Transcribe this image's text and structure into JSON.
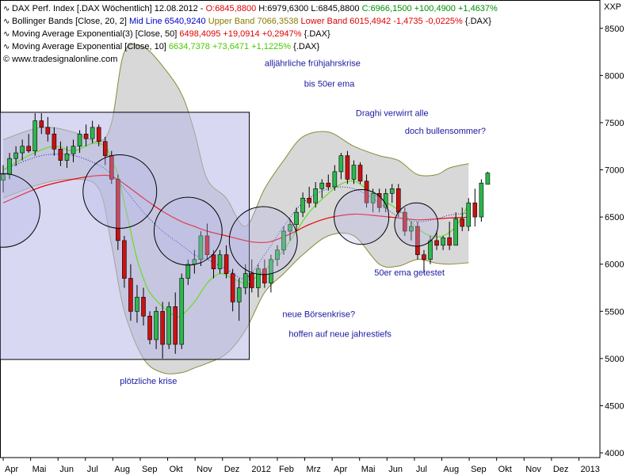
{
  "legend": {
    "line1": {
      "name": "DAX Perf. Index [.DAX  Wöchentlich] 12.08.2012 - ",
      "open": "O:6845,8800",
      "high": "H:6979,6300",
      "low": "L:6845,8800",
      "close": "C:6966,1500 +100,4900 +1,4637%"
    },
    "line2": {
      "name": "Bollinger Bands [Close, 20, 2] ",
      "mid": "Mid Line 6540,9240",
      "upper": "Upper Band 7066,3538",
      "lower": "Lower Band 6015,4942 -1,4735 -0,0225%",
      "tail": "{.DAX}"
    },
    "line3": {
      "name": "Moving Average Exponential(3) [Close, 50] ",
      "value": "6498,4095 +19,0914 +0,2947%",
      "tail": "{.DAX}"
    },
    "line4": {
      "name": "Moving Average Exponential [Close, 10] ",
      "value": "6634,7378 +73,6471 +1,1225%",
      "tail": "{.DAX}"
    },
    "line5": "© www.tradesignalonline.com",
    "icon": "wave-icon"
  },
  "exchange_label": "XXP",
  "colors": {
    "up_candle": "#2db84d",
    "down_candle": "#cc1111",
    "bollinger_fill": "#d8d8d8",
    "bollinger_line": "#8a8a3a",
    "ema50": "#ee0000",
    "ema10": "#66dd22",
    "midline": "#1a1acc",
    "highlight": "#b8b8e8",
    "annotation": "#1a1aa0"
  },
  "chart_data": {
    "type": "candlestick",
    "title": "DAX Perf. Index [.DAX  Wöchentlich]",
    "y_ticks": [
      4000,
      4500,
      5000,
      5500,
      6000,
      6500,
      7000,
      7500,
      8000,
      8500
    ],
    "y_tick_labels": [
      "4000",
      "4500",
      "5000",
      "5500",
      "6000",
      "6500",
      "7000",
      "7500",
      "8000",
      "8500"
    ],
    "ylim": [
      3950,
      8800
    ],
    "x_ticks": [
      "Apr",
      "Mai",
      "Jun",
      "Jul",
      "Aug",
      "Sep",
      "Okt",
      "Nov",
      "Dez",
      "2012",
      "Feb",
      "Mrz",
      "Apr",
      "Mai",
      "Jun",
      "Jul",
      "Aug",
      "Sep",
      "Okt",
      "Nov",
      "Dez",
      "2013"
    ],
    "x_tick_weeks": [
      0,
      4.3,
      8.6,
      12.9,
      17.2,
      21.5,
      25.8,
      30.1,
      34.4,
      38.7,
      43,
      47.3,
      51.6,
      55.9,
      60.2,
      64.5,
      68.8,
      73.1,
      77.4,
      81.7,
      86,
      90.3
    ],
    "xlim_weeks": [
      -0.5,
      93.6
    ],
    "candles": [
      {
        "o": 6890,
        "h": 7050,
        "l": 6760,
        "c": 6950
      },
      {
        "o": 6950,
        "h": 7180,
        "l": 6900,
        "c": 7120
      },
      {
        "o": 7120,
        "h": 7250,
        "l": 7040,
        "c": 7180
      },
      {
        "o": 7180,
        "h": 7320,
        "l": 7100,
        "c": 7250
      },
      {
        "o": 7250,
        "h": 7380,
        "l": 7180,
        "c": 7200
      },
      {
        "o": 7200,
        "h": 7600,
        "l": 7150,
        "c": 7520
      },
      {
        "o": 7520,
        "h": 7600,
        "l": 7380,
        "c": 7450
      },
      {
        "o": 7450,
        "h": 7560,
        "l": 7300,
        "c": 7380
      },
      {
        "o": 7380,
        "h": 7450,
        "l": 7150,
        "c": 7220
      },
      {
        "o": 7220,
        "h": 7300,
        "l": 7040,
        "c": 7100
      },
      {
        "o": 7100,
        "h": 7250,
        "l": 7020,
        "c": 7170
      },
      {
        "o": 7170,
        "h": 7320,
        "l": 7080,
        "c": 7250
      },
      {
        "o": 7250,
        "h": 7420,
        "l": 7180,
        "c": 7380
      },
      {
        "o": 7380,
        "h": 7480,
        "l": 7250,
        "c": 7330
      },
      {
        "o": 7330,
        "h": 7520,
        "l": 7280,
        "c": 7450
      },
      {
        "o": 7450,
        "h": 7480,
        "l": 7250,
        "c": 7300
      },
      {
        "o": 7300,
        "h": 7350,
        "l": 7050,
        "c": 7150
      },
      {
        "o": 7150,
        "h": 7200,
        "l": 6850,
        "c": 6900
      },
      {
        "o": 6900,
        "h": 6950,
        "l": 6150,
        "c": 6250
      },
      {
        "o": 6250,
        "h": 6300,
        "l": 5750,
        "c": 5850
      },
      {
        "o": 5850,
        "h": 6000,
        "l": 5400,
        "c": 5500
      },
      {
        "o": 5500,
        "h": 5780,
        "l": 5380,
        "c": 5650
      },
      {
        "o": 5650,
        "h": 5750,
        "l": 5350,
        "c": 5450
      },
      {
        "o": 5450,
        "h": 5500,
        "l": 5150,
        "c": 5200
      },
      {
        "o": 5200,
        "h": 5550,
        "l": 5100,
        "c": 5500
      },
      {
        "o": 5500,
        "h": 5600,
        "l": 5000,
        "c": 5150
      },
      {
        "o": 5150,
        "h": 5600,
        "l": 5100,
        "c": 5550
      },
      {
        "o": 5550,
        "h": 5700,
        "l": 5050,
        "c": 5150
      },
      {
        "o": 5150,
        "h": 5900,
        "l": 5100,
        "c": 5850
      },
      {
        "o": 5850,
        "h": 6050,
        "l": 5780,
        "c": 6000
      },
      {
        "o": 6000,
        "h": 6150,
        "l": 5900,
        "c": 6050
      },
      {
        "o": 6050,
        "h": 6350,
        "l": 5980,
        "c": 6300
      },
      {
        "o": 6300,
        "h": 6430,
        "l": 6050,
        "c": 6100
      },
      {
        "o": 6100,
        "h": 6150,
        "l": 5850,
        "c": 5950
      },
      {
        "o": 5950,
        "h": 6150,
        "l": 5900,
        "c": 6100
      },
      {
        "o": 6100,
        "h": 6200,
        "l": 5850,
        "c": 5900
      },
      {
        "o": 5900,
        "h": 5950,
        "l": 5500,
        "c": 5600
      },
      {
        "o": 5600,
        "h": 5850,
        "l": 5400,
        "c": 5750
      },
      {
        "o": 5750,
        "h": 6000,
        "l": 5680,
        "c": 5900
      },
      {
        "o": 5900,
        "h": 6050,
        "l": 5700,
        "c": 5750
      },
      {
        "o": 5750,
        "h": 6000,
        "l": 5650,
        "c": 5950
      },
      {
        "o": 5950,
        "h": 6050,
        "l": 5750,
        "c": 5800
      },
      {
        "o": 5800,
        "h": 6100,
        "l": 5700,
        "c": 6050
      },
      {
        "o": 6050,
        "h": 6200,
        "l": 5980,
        "c": 6150
      },
      {
        "o": 6150,
        "h": 6400,
        "l": 6100,
        "c": 6350
      },
      {
        "o": 6350,
        "h": 6480,
        "l": 6250,
        "c": 6420
      },
      {
        "o": 6420,
        "h": 6600,
        "l": 6350,
        "c": 6550
      },
      {
        "o": 6550,
        "h": 6760,
        "l": 6500,
        "c": 6700
      },
      {
        "o": 6700,
        "h": 6820,
        "l": 6600,
        "c": 6650
      },
      {
        "o": 6650,
        "h": 6870,
        "l": 6600,
        "c": 6800
      },
      {
        "o": 6800,
        "h": 6900,
        "l": 6700,
        "c": 6860
      },
      {
        "o": 6860,
        "h": 6950,
        "l": 6780,
        "c": 6820
      },
      {
        "o": 6820,
        "h": 7050,
        "l": 6780,
        "c": 6980
      },
      {
        "o": 6980,
        "h": 7180,
        "l": 6900,
        "c": 7150
      },
      {
        "o": 7150,
        "h": 7200,
        "l": 6850,
        "c": 6900
      },
      {
        "o": 6900,
        "h": 7100,
        "l": 6850,
        "c": 7050
      },
      {
        "o": 7050,
        "h": 7080,
        "l": 6850,
        "c": 6880
      },
      {
        "o": 6880,
        "h": 6950,
        "l": 6600,
        "c": 6650
      },
      {
        "o": 6650,
        "h": 6800,
        "l": 6550,
        "c": 6750
      },
      {
        "o": 6750,
        "h": 6800,
        "l": 6550,
        "c": 6600
      },
      {
        "o": 6600,
        "h": 6800,
        "l": 6550,
        "c": 6750
      },
      {
        "o": 6750,
        "h": 6850,
        "l": 6650,
        "c": 6800
      },
      {
        "o": 6800,
        "h": 6850,
        "l": 6500,
        "c": 6550
      },
      {
        "o": 6550,
        "h": 6600,
        "l": 6300,
        "c": 6350
      },
      {
        "o": 6350,
        "h": 6450,
        "l": 6250,
        "c": 6400
      },
      {
        "o": 6400,
        "h": 6450,
        "l": 6050,
        "c": 6100
      },
      {
        "o": 6100,
        "h": 6150,
        "l": 5900,
        "c": 6050
      },
      {
        "o": 6050,
        "h": 6300,
        "l": 6000,
        "c": 6250
      },
      {
        "o": 6250,
        "h": 6350,
        "l": 6150,
        "c": 6200
      },
      {
        "o": 6200,
        "h": 6300,
        "l": 6150,
        "c": 6280
      },
      {
        "o": 6280,
        "h": 6450,
        "l": 6150,
        "c": 6200
      },
      {
        "o": 6200,
        "h": 6550,
        "l": 6200,
        "c": 6480
      },
      {
        "o": 6480,
        "h": 6600,
        "l": 6350,
        "c": 6400
      },
      {
        "o": 6400,
        "h": 6700,
        "l": 6350,
        "c": 6650
      },
      {
        "o": 6650,
        "h": 6800,
        "l": 6400,
        "c": 6500
      },
      {
        "o": 6500,
        "h": 6900,
        "l": 6450,
        "c": 6860
      },
      {
        "o": 6845.88,
        "h": 6979.63,
        "l": 6845.88,
        "c": 6966.15
      }
    ],
    "bollinger_upper": [
      [
        0,
        7320
      ],
      [
        6,
        7450
      ],
      [
        11,
        7400
      ],
      [
        15,
        7300
      ],
      [
        17,
        7500
      ],
      [
        19,
        8250
      ],
      [
        22,
        8300
      ],
      [
        25,
        8100
      ],
      [
        28,
        7800
      ],
      [
        30,
        7400
      ],
      [
        32,
        6900
      ],
      [
        35,
        6700
      ],
      [
        38,
        6400
      ],
      [
        41,
        6800
      ],
      [
        44,
        7100
      ],
      [
        47,
        7350
      ],
      [
        51,
        7400
      ],
      [
        55,
        7250
      ],
      [
        59,
        7150
      ],
      [
        62,
        7100
      ],
      [
        65,
        6950
      ],
      [
        68,
        6950
      ],
      [
        70,
        7020
      ],
      [
        73,
        7066
      ]
    ],
    "bollinger_lower": [
      [
        0,
        6700
      ],
      [
        6,
        6850
      ],
      [
        11,
        6900
      ],
      [
        15,
        6800
      ],
      [
        17,
        6200
      ],
      [
        19,
        5500
      ],
      [
        22,
        5000
      ],
      [
        25,
        4850
      ],
      [
        28,
        4850
      ],
      [
        30,
        4900
      ],
      [
        32,
        4950
      ],
      [
        35,
        5050
      ],
      [
        38,
        5300
      ],
      [
        41,
        5700
      ],
      [
        44,
        5900
      ],
      [
        47,
        6100
      ],
      [
        51,
        6300
      ],
      [
        55,
        6300
      ],
      [
        59,
        6000
      ],
      [
        62,
        5980
      ],
      [
        65,
        6050
      ],
      [
        68,
        6010
      ],
      [
        70,
        6000
      ],
      [
        73,
        6015
      ]
    ],
    "bollinger_mid": [
      [
        0,
        7000
      ],
      [
        6,
        7150
      ],
      [
        11,
        7150
      ],
      [
        15,
        7050
      ],
      [
        17,
        6950
      ],
      [
        19,
        6800
      ],
      [
        22,
        6550
      ],
      [
        25,
        6350
      ],
      [
        28,
        6200
      ],
      [
        30,
        6100
      ],
      [
        32,
        6050
      ],
      [
        35,
        5950
      ],
      [
        38,
        5850
      ],
      [
        41,
        6100
      ],
      [
        44,
        6400
      ],
      [
        47,
        6650
      ],
      [
        51,
        6800
      ],
      [
        55,
        6800
      ],
      [
        59,
        6650
      ],
      [
        62,
        6500
      ],
      [
        65,
        6450
      ],
      [
        68,
        6480
      ],
      [
        70,
        6520
      ],
      [
        73,
        6541
      ]
    ],
    "ema50": [
      [
        0,
        6650
      ],
      [
        6,
        6820
      ],
      [
        11,
        6900
      ],
      [
        15,
        6940
      ],
      [
        17,
        6930
      ],
      [
        19,
        6850
      ],
      [
        22,
        6700
      ],
      [
        25,
        6560
      ],
      [
        28,
        6450
      ],
      [
        30,
        6400
      ],
      [
        32,
        6350
      ],
      [
        35,
        6300
      ],
      [
        38,
        6250
      ],
      [
        40,
        6230
      ],
      [
        42,
        6240
      ],
      [
        45,
        6320
      ],
      [
        48,
        6420
      ],
      [
        51,
        6490
      ],
      [
        55,
        6530
      ],
      [
        59,
        6510
      ],
      [
        62,
        6490
      ],
      [
        65,
        6470
      ],
      [
        68,
        6480
      ],
      [
        70,
        6490
      ],
      [
        73,
        6498
      ]
    ],
    "ema10": [
      [
        0,
        7000
      ],
      [
        4,
        7150
      ],
      [
        8,
        7250
      ],
      [
        11,
        7200
      ],
      [
        14,
        7280
      ],
      [
        16,
        7250
      ],
      [
        17,
        7100
      ],
      [
        18,
        6950
      ],
      [
        19,
        6650
      ],
      [
        20,
        6350
      ],
      [
        21,
        6050
      ],
      [
        22,
        5850
      ],
      [
        23,
        5700
      ],
      [
        25,
        5550
      ],
      [
        27,
        5450
      ],
      [
        28,
        5460
      ],
      [
        30,
        5600
      ],
      [
        32,
        5800
      ],
      [
        34,
        5900
      ],
      [
        36,
        5850
      ],
      [
        38,
        5800
      ],
      [
        40,
        5880
      ],
      [
        42,
        6000
      ],
      [
        44,
        6150
      ],
      [
        46,
        6350
      ],
      [
        48,
        6550
      ],
      [
        51,
        6750
      ],
      [
        53,
        6850
      ],
      [
        55,
        6880
      ],
      [
        57,
        6800
      ],
      [
        59,
        6700
      ],
      [
        61,
        6620
      ],
      [
        63,
        6520
      ],
      [
        65,
        6380
      ],
      [
        67,
        6300
      ],
      [
        69,
        6300
      ],
      [
        71,
        6400
      ],
      [
        73,
        6635
      ]
    ],
    "highlight_rect": {
      "w0": -0.5,
      "w1": 38.6,
      "v0": 4990,
      "v1": 7610
    },
    "circles": [
      {
        "w": 0,
        "v": 6570,
        "rv": 390
      },
      {
        "w": 18.3,
        "v": 6770,
        "rv": 390
      },
      {
        "w": 29,
        "v": 6350,
        "rv": 360
      },
      {
        "w": 40.8,
        "v": 6250,
        "rv": 360
      },
      {
        "w": 56.2,
        "v": 6500,
        "rv": 290
      },
      {
        "w": 64.8,
        "v": 6420,
        "rv": 230
      }
    ],
    "annotations": [
      {
        "text": "alljährliche frühjahrskrise",
        "w": 41,
        "v": 8100
      },
      {
        "text": "bis 50er ema",
        "w": 47.2,
        "v": 7880
      },
      {
        "text": "Draghi verwirrt alle",
        "w": 55.3,
        "v": 7570
      },
      {
        "text": "doch bullensommer?",
        "w": 63,
        "v": 7380
      },
      {
        "text": "50er ema getestet",
        "w": 58.2,
        "v": 5880
      },
      {
        "text": "neue Börsenkrise?",
        "w": 43.8,
        "v": 5440
      },
      {
        "text": "hoffen auf neue jahrestiefs",
        "w": 44.8,
        "v": 5230
      },
      {
        "text": "plötzliche krise",
        "w": 18.3,
        "v": 4730
      }
    ]
  }
}
